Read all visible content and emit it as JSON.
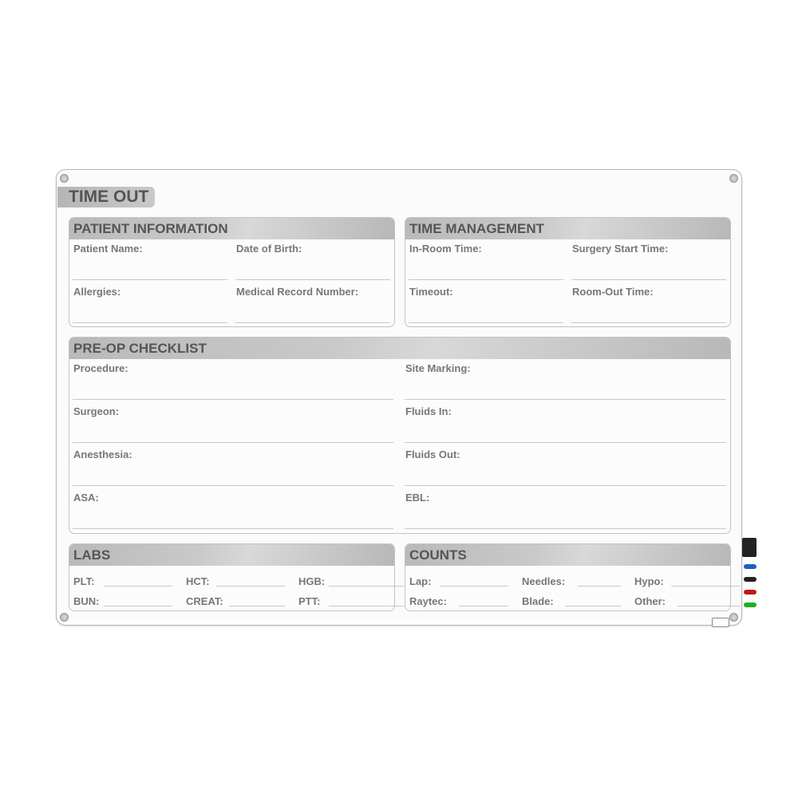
{
  "title": "TIME OUT",
  "patient_information": {
    "heading": "PATIENT INFORMATION",
    "fields": [
      "Patient Name:",
      "Date of Birth:",
      "Allergies:",
      "Medical Record Number:"
    ]
  },
  "time_management": {
    "heading": "TIME MANAGEMENT",
    "fields": [
      "In-Room Time:",
      "Surgery Start Time:",
      "Timeout:",
      "Room-Out Time:"
    ]
  },
  "pre_op_checklist": {
    "heading": "PRE-OP CHECKLIST",
    "left": [
      "Procedure:",
      "Surgeon:",
      "Anesthesia:",
      "ASA:"
    ],
    "right": [
      "Site Marking:",
      "Fluids In:",
      "Fluids Out:",
      "EBL:"
    ]
  },
  "labs": {
    "heading": "LABS",
    "fields": [
      "PLT:",
      "HCT:",
      "HGB:",
      "BUN:",
      "CREAT:",
      "PTT:"
    ]
  },
  "counts": {
    "heading": "COUNTS",
    "fields": [
      "Lap:",
      "Needles:",
      "Hypo:",
      "Raytec:",
      "Blade:",
      "Other:"
    ]
  },
  "marker_colors": [
    "#1e5fc0",
    "#222222",
    "#c01818",
    "#20b020"
  ]
}
